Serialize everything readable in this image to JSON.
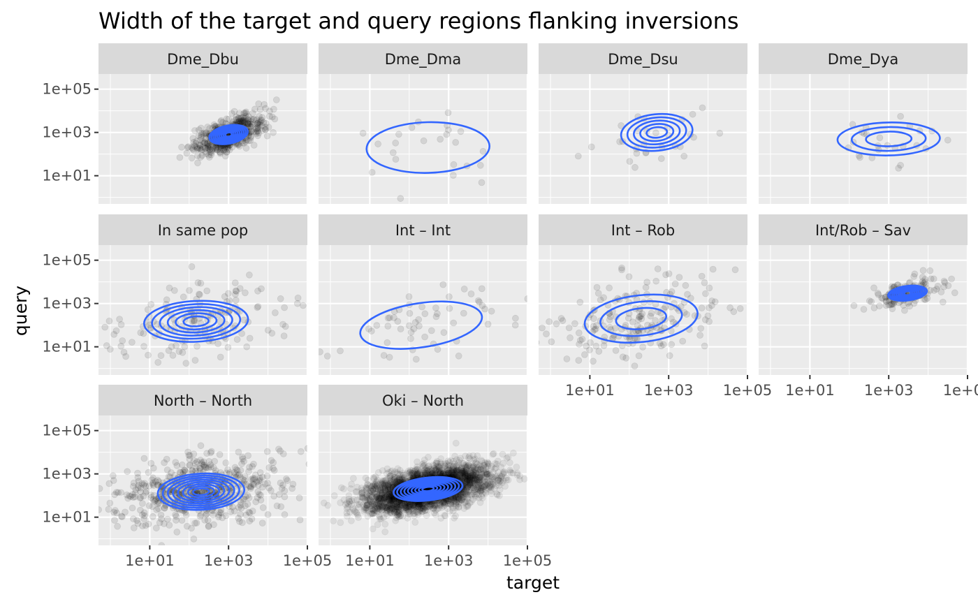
{
  "chart_data": {
    "type": "scatter",
    "title": "Width of the target and query regions flanking inversions",
    "xlabel": "target",
    "ylabel": "query",
    "x_scale": "log10",
    "y_scale": "log10",
    "xlim": [
      0.5,
      100000
    ],
    "ylim": [
      0.5,
      500000
    ],
    "x_ticks": [
      "1e+01",
      "1e+03",
      "1e+05"
    ],
    "y_ticks": [
      "1e+01",
      "1e+03",
      "1e+05"
    ],
    "point_color": "#000000",
    "contour_color": "#3366FF",
    "panel_background": "#EBEBEB",
    "strip_background": "#D9D9D9",
    "grid": true,
    "layout": "facet_wrap, 4 columns",
    "panels": [
      {
        "label": "Dme_Dbu",
        "n_points": 500,
        "center": [
          1000,
          800
        ],
        "spread": [
          0.45,
          0.45
        ],
        "corr": 0.6,
        "contours": 9,
        "contour_scale": 1.1
      },
      {
        "label": "Dme_Dma",
        "n_points": 25,
        "center": [
          300,
          200
        ],
        "spread": [
          1.3,
          1.0
        ],
        "corr": 0.1,
        "contours": 1,
        "contour_scale": 1.2
      },
      {
        "label": "Dme_Dsu",
        "n_points": 30,
        "center": [
          500,
          1000
        ],
        "spread": [
          0.7,
          0.7
        ],
        "corr": 0.3,
        "contours": 5,
        "contour_scale": 1.3
      },
      {
        "label": "Dme_Dya",
        "n_points": 25,
        "center": [
          1000,
          500
        ],
        "spread": [
          1.0,
          0.6
        ],
        "corr": 0.1,
        "contours": 3,
        "contour_scale": 1.3
      },
      {
        "label": "In same pop",
        "n_points": 160,
        "center": [
          150,
          150
        ],
        "spread": [
          1.2,
          0.9
        ],
        "corr": 0.2,
        "contours": 6,
        "contour_scale": 1.1
      },
      {
        "label": "Int – Int",
        "n_points": 60,
        "center": [
          200,
          100
        ],
        "spread": [
          1.3,
          1.0
        ],
        "corr": 0.6,
        "contours": 1,
        "contour_scale": 1.2
      },
      {
        "label": "Int – Rob",
        "n_points": 200,
        "center": [
          200,
          200
        ],
        "spread": [
          1.2,
          1.0
        ],
        "corr": 0.4,
        "contours": 3,
        "contour_scale": 1.2
      },
      {
        "label": "Int/Rob – Sav",
        "n_points": 150,
        "center": [
          3000,
          3000
        ],
        "spread": [
          0.45,
          0.35
        ],
        "corr": 0.5,
        "contours": 9,
        "contour_scale": 1.1
      },
      {
        "label": "North – North",
        "n_points": 600,
        "center": [
          200,
          150
        ],
        "spread": [
          1.0,
          0.8
        ],
        "corr": 0.2,
        "contours": 8,
        "contour_scale": 1.1
      },
      {
        "label": "Oki – North",
        "n_points": 3000,
        "center": [
          300,
          200
        ],
        "spread": [
          0.8,
          0.55
        ],
        "corr": 0.5,
        "contours": 9,
        "contour_scale": 1.1
      }
    ]
  }
}
